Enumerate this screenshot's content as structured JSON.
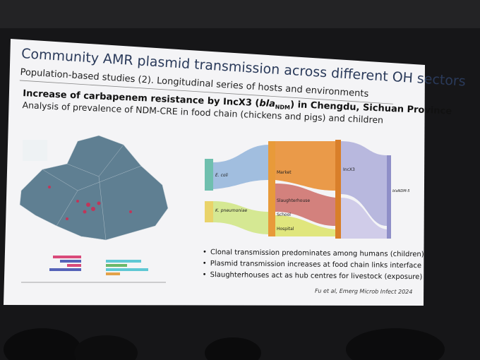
{
  "slide": {
    "title": "Community AMR plasmid transmission across different OH sectors",
    "subtitle": "Population-based studies (2). Longitudinal series of hosts and environments",
    "heading": {
      "before": "Increase of carbapenem resistance by IncX3 (",
      "gene": "bla",
      "gene_sub": "NDM",
      "after": ") in Chengdu, Sichuan Province"
    },
    "subheading": "Analysis of prevalence of NDM-CRE in food chain (chickens and pigs) and children",
    "sankey_labels": {
      "left": [
        "E. coli",
        "K. pneumoniae"
      ],
      "middle": [
        "Market",
        "Slaughterhouse",
        "School",
        "Hospital"
      ],
      "right": [
        "IncX3",
        "blaNDM-5"
      ]
    },
    "bullets": [
      "Clonal transmission predominates among humans (children)",
      "Plasmid transmission increases at food chain links interface",
      "Slaughterhouses act as hub centres for livestock (exposure)"
    ],
    "citation": "Fu et al, Emerg Microb Infect 2024"
  }
}
